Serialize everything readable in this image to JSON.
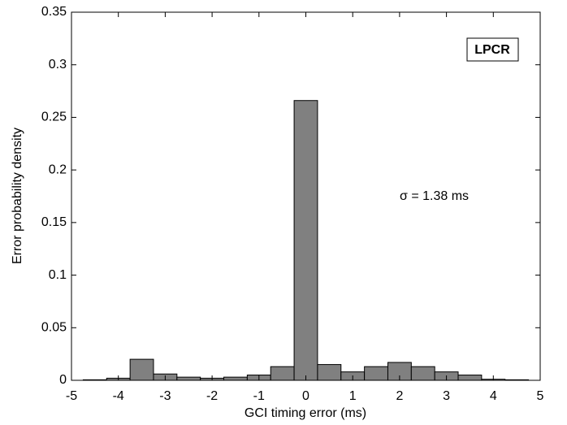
{
  "chart_data": {
    "type": "histogram",
    "xlabel": "GCI timing error (ms)",
    "ylabel": "Error probability density",
    "bins": [
      -4.75,
      -4.25,
      -3.75,
      -3.25,
      -2.75,
      -2.25,
      -1.75,
      -1.25,
      -0.75,
      -0.25,
      0.25,
      0.75,
      1.25,
      1.75,
      2.25,
      2.75,
      3.25,
      3.75,
      4.25,
      4.75
    ],
    "values": [
      0.0005,
      0.002,
      0.02,
      0.006,
      0.003,
      0.002,
      0.003,
      0.005,
      0.013,
      0.266,
      0.015,
      0.008,
      0.013,
      0.017,
      0.013,
      0.008,
      0.005,
      0.001,
      0.0005
    ],
    "color": "#808080",
    "xlim": [
      -5,
      5
    ],
    "xticks": [
      -5,
      -4,
      -3,
      -2,
      -1,
      0,
      1,
      2,
      3,
      4,
      5
    ],
    "ylim": [
      0,
      0.35
    ],
    "yticks": [
      0,
      0.05,
      0.1,
      0.15,
      0.2,
      0.25,
      0.3,
      0.35
    ],
    "annotations": [
      "LPCR",
      "σ = 1.38 ms"
    ]
  }
}
